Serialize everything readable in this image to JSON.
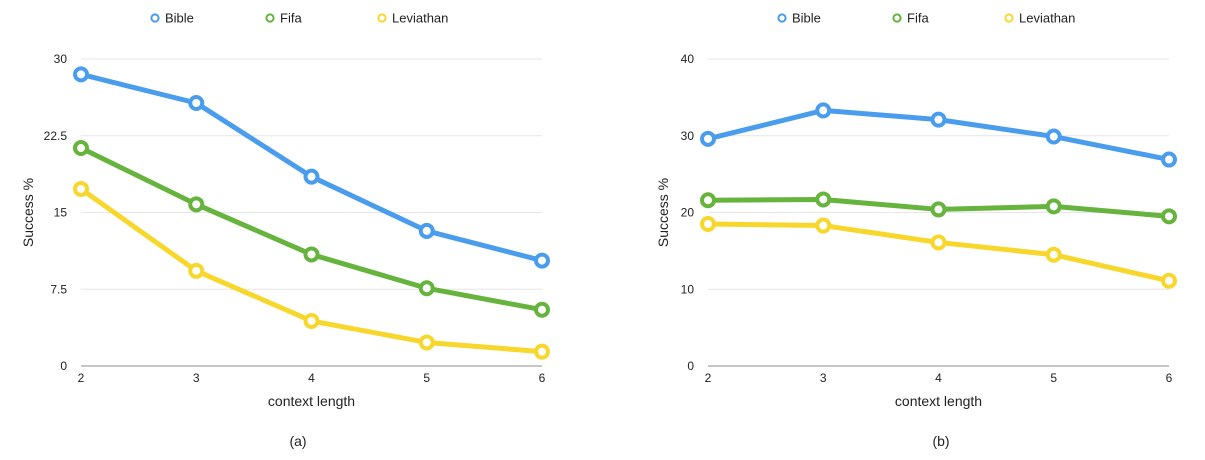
{
  "chart_data": [
    {
      "type": "line",
      "caption": "(a)",
      "xlabel": "context length",
      "ylabel": "Success %",
      "x": [
        2,
        3,
        4,
        5,
        6
      ],
      "ylim": [
        0,
        30
      ],
      "yticks": [
        "0",
        "7.5",
        "15",
        "22.5",
        "30"
      ],
      "grid": true,
      "legend_position": "top",
      "series": [
        {
          "name": "Bible",
          "color": "#4a9ded",
          "values": [
            28.5,
            25.7,
            18.5,
            13.2,
            10.3
          ]
        },
        {
          "name": "Fifa",
          "color": "#66b33d",
          "values": [
            21.3,
            15.8,
            10.9,
            7.6,
            5.5
          ]
        },
        {
          "name": "Leviathan",
          "color": "#f7d72b",
          "values": [
            17.3,
            9.3,
            4.4,
            2.3,
            1.4
          ]
        }
      ]
    },
    {
      "type": "line",
      "caption": "(b)",
      "xlabel": "context length",
      "ylabel": "Success %",
      "x": [
        2,
        3,
        4,
        5,
        6
      ],
      "ylim": [
        0,
        40
      ],
      "yticks": [
        "0",
        "10",
        "20",
        "30",
        "40"
      ],
      "grid": true,
      "legend_position": "top",
      "series": [
        {
          "name": "Bible",
          "color": "#4a9ded",
          "values": [
            29.6,
            33.3,
            32.1,
            29.9,
            26.9
          ]
        },
        {
          "name": "Fifa",
          "color": "#66b33d",
          "values": [
            21.6,
            21.7,
            20.4,
            20.8,
            19.5
          ]
        },
        {
          "name": "Leviathan",
          "color": "#f7d72b",
          "values": [
            18.5,
            18.3,
            16.1,
            14.5,
            11.1
          ]
        }
      ]
    }
  ]
}
